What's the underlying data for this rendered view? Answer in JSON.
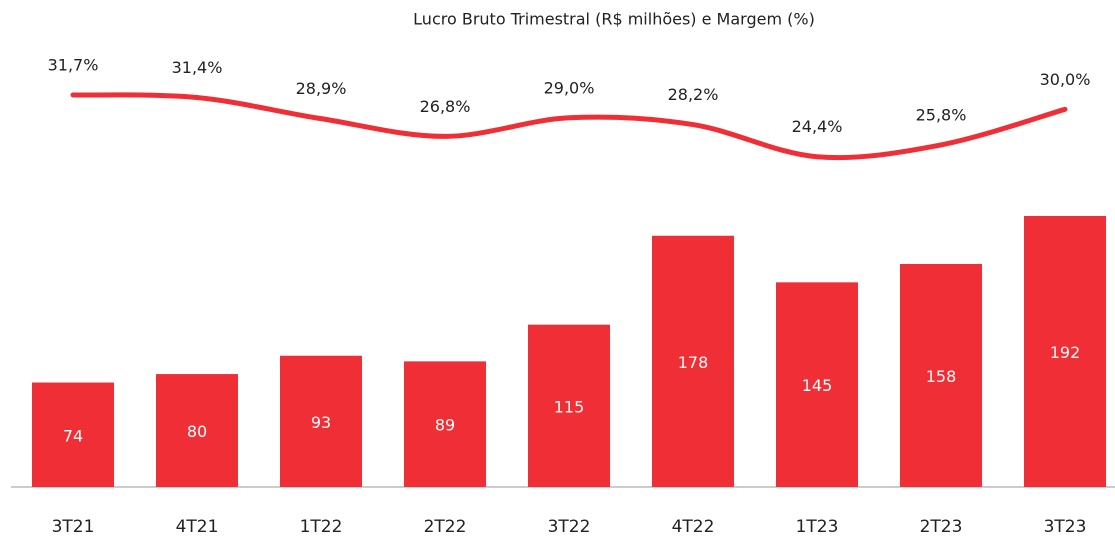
{
  "chart_data": {
    "type": "bar",
    "title": "Lucro Bruto Trimestral (R$ milhões) e Margem (%)",
    "categories": [
      "3T21",
      "4T21",
      "1T22",
      "2T22",
      "3T22",
      "4T22",
      "1T23",
      "2T23",
      "3T23"
    ],
    "series": [
      {
        "type": "bar",
        "color": "#ef2f35",
        "values": [
          74,
          80,
          93,
          89,
          115,
          178,
          145,
          158,
          192
        ]
      },
      {
        "type": "line",
        "axis": "y2",
        "color": "#ef2f35",
        "values": [
          31.7,
          31.4,
          28.9,
          26.8,
          29.0,
          28.2,
          24.4,
          25.8,
          30.0
        ],
        "value_labels": [
          "31,7%",
          "31,4%",
          "28,9%",
          "26,8%",
          "29,0%",
          "28,2%",
          "24,4%",
          "25,8%",
          "30,0%"
        ]
      }
    ],
    "ylim": [
      0,
      200
    ],
    "y2lim": [
      20,
      35
    ]
  }
}
